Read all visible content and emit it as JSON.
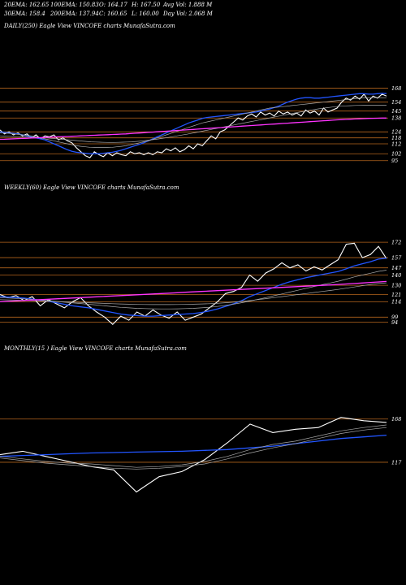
{
  "header": {
    "row1": [
      "20EMA: 162.65",
      "100EMA: 150.83",
      "O: 164.17",
      "H: 167.50",
      "Avg Vol: 1.888  M"
    ],
    "row2": [
      "30EMA: 158.4",
      "200EMA: 137.94",
      "C: 160.65",
      "L: 160.00",
      "Day Vol: 2.068 M"
    ]
  },
  "colors": {
    "background": "#000000",
    "price": "#ffffff",
    "ema_fast": "#2255ff",
    "ema_slow": "#ff33ff",
    "ema_other": "#aaaaaa",
    "level_line": "#b5651d"
  },
  "chart_data": [
    {
      "type": "line",
      "label": "DAILY(250)  Eagle   View  VINCOFE charts  MunafaSutra.com",
      "ylim": [
        85,
        175
      ],
      "levels": [
        168,
        154,
        145,
        138,
        124,
        118,
        112,
        102,
        95
      ],
      "ticks": [
        "168",
        "154",
        "145",
        "138",
        "124",
        "118",
        "112",
        "102",
        "95"
      ],
      "series": [
        {
          "role": "price",
          "values": [
            126,
            122,
            124,
            121,
            123,
            120,
            122,
            118,
            121,
            117,
            120,
            119,
            121,
            116,
            118,
            115,
            113,
            108,
            104,
            100,
            98,
            104,
            101,
            99,
            103,
            100,
            103,
            101,
            100,
            104,
            102,
            103,
            101,
            103,
            101,
            104,
            103,
            107,
            105,
            108,
            104,
            106,
            110,
            107,
            112,
            110,
            115,
            120,
            117,
            124,
            126,
            130,
            134,
            138,
            136,
            140,
            142,
            139,
            144,
            141,
            143,
            140,
            145,
            142,
            144,
            141,
            143,
            140,
            146,
            143,
            145,
            141,
            148,
            144,
            146,
            148,
            154,
            158,
            156,
            160,
            157,
            162,
            155,
            160,
            158,
            162,
            160
          ]
        },
        {
          "role": "ema_fast",
          "values": [
            124,
            123.5,
            123,
            122.5,
            122,
            121,
            120,
            119,
            118,
            117,
            116,
            114,
            112,
            110,
            108,
            106,
            104.5,
            103.5,
            103,
            102.5,
            102,
            102,
            102,
            102.5,
            103,
            103.5,
            104.5,
            105.5,
            107,
            108.5,
            110,
            111.5,
            113,
            115,
            117,
            119,
            121,
            123,
            125,
            127,
            129,
            131,
            133,
            134.5,
            136,
            137.5,
            138.5,
            139,
            139.5,
            140,
            140.5,
            141,
            141.5,
            142,
            142.5,
            143,
            143.5,
            144,
            145,
            146,
            147,
            148.5,
            150,
            152,
            154,
            155.5,
            157,
            158,
            158.5,
            158.5,
            158,
            158,
            158.5,
            159,
            159.5,
            160,
            160.5,
            161,
            161.5,
            162,
            162.5,
            162.5,
            162,
            162,
            162.5,
            162.8,
            162.6
          ]
        },
        {
          "role": "ema_other",
          "values": [
            123,
            122.8,
            122.5,
            122,
            121.5,
            121,
            120.5,
            120,
            119,
            118,
            117,
            116,
            115,
            114,
            113,
            112,
            111,
            110,
            109.5,
            109,
            108.5,
            108.3,
            108.2,
            108.2,
            108.3,
            108.5,
            109,
            109.5,
            110,
            111,
            112,
            113,
            114,
            115,
            116.5,
            118,
            119.5,
            121,
            122.5,
            124,
            125.5,
            127,
            128.5,
            130,
            131.5,
            133,
            134,
            135,
            136,
            137,
            138,
            139,
            140,
            141,
            142,
            143,
            144,
            145,
            146,
            147,
            148,
            148.5,
            149,
            149.5,
            150,
            150.5,
            151,
            151.5,
            152,
            152.5,
            153,
            153.5,
            154,
            154.5,
            155,
            155.5,
            156,
            156.5,
            157,
            157.5,
            158,
            158.2,
            158.4,
            158.5,
            158.5,
            158.4,
            158.4
          ]
        },
        {
          "role": "ema_other",
          "values": [
            120,
            119.8,
            119.6,
            119.4,
            119.2,
            119,
            118.8,
            118.6,
            118.4,
            118.2,
            118,
            117.6,
            117.2,
            116.8,
            116.4,
            116,
            115.6,
            115.2,
            114.8,
            114.4,
            114,
            113.8,
            113.6,
            113.5,
            113.4,
            113.4,
            113.5,
            113.6,
            113.8,
            114,
            114.4,
            114.8,
            115.3,
            115.8,
            116.4,
            117,
            117.7,
            118.4,
            119.2,
            120,
            120.8,
            121.6,
            122.5,
            123.4,
            124.3,
            125.2,
            126.1,
            127,
            127.9,
            128.8,
            129.7,
            130.6,
            131.5,
            132.4,
            133.3,
            134.2,
            135.1,
            136,
            136.9,
            137.8,
            138.7,
            139.6,
            140.5,
            141.4,
            142.3,
            143.2,
            144,
            144.8,
            145.6,
            146.4,
            147.2,
            147.8,
            148.4,
            149,
            149.5,
            149.9,
            150.2,
            150.4,
            150.6,
            150.7,
            150.8,
            150.8,
            150.8,
            150.8,
            150.8,
            150.8
          ]
        },
        {
          "role": "ema_slow",
          "values": [
            116.5,
            116.6,
            116.8,
            117,
            117.2,
            117.4,
            117.6,
            117.8,
            118,
            118.2,
            118.4,
            118.6,
            118.8,
            119,
            119.2,
            119.4,
            119.6,
            119.8,
            120,
            120.2,
            120.4,
            120.6,
            120.8,
            121,
            121.2,
            121.4,
            121.6,
            121.8,
            122,
            122.3,
            122.6,
            122.9,
            123.2,
            123.5,
            123.8,
            124.1,
            124.4,
            124.7,
            125,
            125.3,
            125.6,
            125.9,
            126.2,
            126.5,
            126.8,
            127.1,
            127.4,
            127.7,
            128,
            128.3,
            128.6,
            128.9,
            129.2,
            129.5,
            129.8,
            130.1,
            130.4,
            130.7,
            131,
            131.3,
            131.6,
            131.9,
            132.2,
            132.5,
            132.8,
            133.1,
            133.4,
            133.7,
            134,
            134.3,
            134.6,
            134.9,
            135.2,
            135.5,
            135.8,
            136.1,
            136.4,
            136.6,
            136.8,
            137,
            137.2,
            137.4,
            137.6,
            137.7,
            137.8,
            137.9,
            137.94
          ]
        }
      ]
    },
    {
      "type": "line",
      "label": "WEEKLY(60)  Eagle   View  VINCOFE charts  MunafaSutra.com",
      "ylim": [
        85,
        180
      ],
      "levels": [
        172,
        157,
        147,
        140,
        130,
        121,
        114,
        99,
        94
      ],
      "ticks": [
        "172",
        "157",
        "147",
        "140",
        "130",
        "121",
        "114",
        "99",
        "94"
      ],
      "series": [
        {
          "role": "price",
          "values": [
            121,
            118,
            120,
            115,
            119,
            110,
            116,
            112,
            108,
            114,
            118,
            110,
            104,
            99,
            92,
            100,
            96,
            104,
            100,
            106,
            101,
            98,
            104,
            96,
            99,
            102,
            108,
            114,
            122,
            124,
            128,
            140,
            134,
            142,
            146,
            152,
            147,
            150,
            144,
            148,
            145,
            150,
            155,
            170,
            171,
            157,
            160,
            168,
            156
          ]
        },
        {
          "role": "ema_fast",
          "values": [
            119,
            118.5,
            118,
            117.5,
            116.5,
            115.5,
            114.5,
            113,
            111.5,
            110,
            109,
            108,
            106.5,
            105,
            103.5,
            102,
            101,
            100.5,
            100,
            100,
            100.5,
            101,
            101.5,
            102,
            102.5,
            103.5,
            105,
            107,
            109.5,
            112,
            115,
            119,
            122,
            125,
            128,
            131,
            133.5,
            135.5,
            137.5,
            139,
            140.5,
            142,
            143.5,
            146,
            149,
            151,
            153,
            155.5,
            156.5
          ]
        },
        {
          "role": "ema_other",
          "values": [
            118,
            117.6,
            117.2,
            116.8,
            116.2,
            115.6,
            115,
            114.3,
            113.6,
            112.9,
            112.2,
            111.5,
            110.8,
            110,
            109.2,
            108.5,
            108,
            107.6,
            107.3,
            107.1,
            107,
            107,
            107.1,
            107.3,
            107.6,
            108,
            108.6,
            109.4,
            110.4,
            111.6,
            113,
            114.6,
            116.3,
            118,
            119.8,
            121.6,
            123.4,
            125.2,
            127,
            128.8,
            130.6,
            132.3,
            134,
            136,
            138.2,
            140,
            141.8,
            143.6,
            144.8
          ]
        },
        {
          "role": "ema_other",
          "values": [
            116,
            115.8,
            115.6,
            115.4,
            115.1,
            114.8,
            114.5,
            114.2,
            113.9,
            113.6,
            113.3,
            113,
            112.7,
            112.4,
            112.1,
            111.8,
            111.6,
            111.4,
            111.3,
            111.2,
            111.2,
            111.2,
            111.3,
            111.4,
            111.6,
            111.8,
            112.1,
            112.5,
            113,
            113.6,
            114.3,
            115.1,
            116,
            117,
            118,
            119,
            120,
            121,
            122,
            123,
            124,
            125,
            126,
            127.2,
            128.4,
            129.6,
            130.8,
            131.8,
            132.4
          ]
        },
        {
          "role": "ema_slow",
          "values": [
            114,
            114.4,
            114.8,
            115.2,
            115.6,
            116,
            116.4,
            116.8,
            117.2,
            117.6,
            118,
            118.4,
            118.8,
            119.2,
            119.6,
            120,
            120.4,
            120.8,
            121.2,
            121.6,
            122,
            122.4,
            122.8,
            123.2,
            123.6,
            124,
            124.4,
            124.8,
            125.2,
            125.6,
            126,
            126.4,
            126.8,
            127.2,
            127.6,
            128,
            128.4,
            128.8,
            129.2,
            129.6,
            130,
            130.4,
            130.8,
            131.3,
            131.8,
            132.3,
            132.8,
            133.3,
            133.8
          ]
        }
      ]
    },
    {
      "type": "line",
      "label": "MONTHLY(15                    )  Eagle   View  VINCOFE charts  MunafaSutra.com",
      "ylim": [
        70,
        185
      ],
      "levels": [
        168,
        117
      ],
      "ticks": [
        "168",
        "117"
      ],
      "series": [
        {
          "role": "price",
          "values": [
            126,
            130,
            124,
            118,
            112,
            108,
            82,
            100,
            106,
            120,
            140,
            162,
            152,
            156,
            158,
            170,
            166,
            164
          ]
        },
        {
          "role": "ema_fast",
          "values": [
            124,
            125,
            126,
            127,
            128,
            128.5,
            129,
            129.5,
            130,
            131,
            132,
            134,
            136,
            139,
            142,
            145,
            147,
            149
          ]
        },
        {
          "role": "ema_other",
          "values": [
            124,
            121,
            118,
            116,
            115,
            113,
            111,
            112,
            114,
            118,
            124,
            132,
            138,
            142,
            148,
            154,
            158,
            161
          ]
        },
        {
          "role": "ema_other",
          "values": [
            122,
            119,
            116,
            114,
            112,
            110,
            109,
            110,
            112,
            115,
            121,
            128,
            134,
            139,
            145,
            151,
            155,
            158
          ]
        }
      ]
    }
  ]
}
